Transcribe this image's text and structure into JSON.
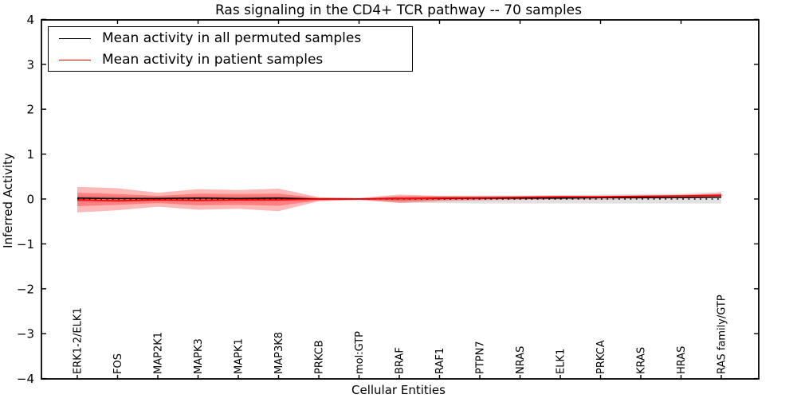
{
  "title": "Ras signaling in the CD4+ TCR pathway -- 70 samples",
  "axes": {
    "xlabel": "Cellular Entities",
    "ylabel": "Inferred Activity"
  },
  "legend": {
    "items": [
      {
        "label": "Mean activity in all permuted samples",
        "color": "#000000"
      },
      {
        "label": "Mean activity in patient samples",
        "color": "#ff0000"
      }
    ]
  },
  "chart_data": {
    "type": "line",
    "title": "Ras signaling in the CD4+ TCR pathway -- 70 samples",
    "xlabel": "Cellular Entities",
    "ylabel": "Inferred Activity",
    "ylim": [
      -4,
      4
    ],
    "grid": false,
    "legend_position": "upper left",
    "ytick_values": [
      4,
      3,
      2,
      1,
      0,
      -1,
      -2,
      -3,
      -4
    ],
    "ytick_labels": [
      "4",
      "3",
      "2",
      "1",
      "0",
      "−1",
      "−2",
      "−3",
      "−4"
    ],
    "categories": [
      "ERK1-2/ELK1",
      "FOS",
      "MAP2K1",
      "MAPK3",
      "MAPK1",
      "MAP3K8",
      "PRKCB",
      "mol:GTP",
      "BRAF",
      "RAF1",
      "PTPN7",
      "NRAS",
      "ELK1",
      "PRKCA",
      "KRAS",
      "HRAS",
      "RAS family/GTP"
    ],
    "top_tick_indices": [
      1,
      3,
      5,
      7,
      9,
      11,
      13,
      15
    ],
    "bands": [
      {
        "id": "permuted-range-band",
        "color": "#888888",
        "opacity": 0.25,
        "upper": [
          0.07,
          0.06,
          0.05,
          0.06,
          0.06,
          0.06,
          0.03,
          0.02,
          0.06,
          0.07,
          0.08,
          0.08,
          0.09,
          0.1,
          0.11,
          0.12,
          0.16
        ],
        "lower": [
          -0.07,
          -0.06,
          -0.05,
          -0.06,
          -0.06,
          -0.06,
          -0.03,
          -0.02,
          -0.08,
          -0.09,
          -0.1,
          -0.1,
          -0.1,
          -0.1,
          -0.1,
          -0.1,
          -0.1
        ]
      },
      {
        "id": "patient-range-outer-band",
        "color": "#ff0000",
        "opacity": 0.28,
        "upper": [
          0.27,
          0.24,
          0.14,
          0.22,
          0.2,
          0.23,
          0.04,
          0.02,
          0.1,
          0.07,
          0.06,
          0.06,
          0.07,
          0.07,
          0.08,
          0.09,
          0.13
        ],
        "lower": [
          -0.3,
          -0.25,
          -0.17,
          -0.24,
          -0.22,
          -0.27,
          -0.05,
          -0.02,
          -0.09,
          -0.05,
          -0.03,
          -0.02,
          -0.01,
          -0.01,
          0.0,
          0.01,
          0.03
        ]
      },
      {
        "id": "patient-range-inner-band",
        "color": "#ff0000",
        "opacity": 0.3,
        "upper": [
          0.14,
          0.11,
          0.07,
          0.12,
          0.11,
          0.12,
          0.02,
          0.01,
          0.06,
          0.05,
          0.05,
          0.05,
          0.06,
          0.06,
          0.07,
          0.08,
          0.11
        ],
        "lower": [
          -0.16,
          -0.13,
          -0.09,
          -0.14,
          -0.13,
          -0.15,
          -0.03,
          -0.01,
          -0.05,
          -0.02,
          -0.01,
          0.0,
          0.01,
          0.02,
          0.03,
          0.04,
          0.05
        ]
      }
    ],
    "series": [
      {
        "id": "permuted-mean-line",
        "name": "Mean activity in all permuted samples",
        "color": "#000000",
        "style": "solid",
        "width": 1.5,
        "values": [
          0.02,
          0.01,
          0.01,
          0.02,
          0.01,
          0.02,
          0.0,
          0.0,
          0.01,
          0.01,
          0.02,
          0.02,
          0.02,
          0.03,
          0.03,
          0.03,
          0.04
        ]
      },
      {
        "id": "zero-reference-line",
        "name": "zero reference",
        "color": "#000000",
        "style": "dotted",
        "width": 1.6,
        "values": [
          0,
          0,
          0,
          0,
          0,
          0,
          0,
          0,
          0,
          0,
          0,
          0,
          0,
          0,
          0,
          0,
          0
        ]
      },
      {
        "id": "patient-mean-line",
        "name": "Mean activity in patient samples",
        "color": "#ff0000",
        "style": "solid",
        "width": 1.7,
        "values": [
          -0.02,
          -0.04,
          -0.02,
          -0.03,
          -0.02,
          -0.02,
          0.0,
          0.0,
          0.01,
          0.02,
          0.03,
          0.04,
          0.05,
          0.05,
          0.06,
          0.07,
          0.08
        ]
      }
    ]
  }
}
